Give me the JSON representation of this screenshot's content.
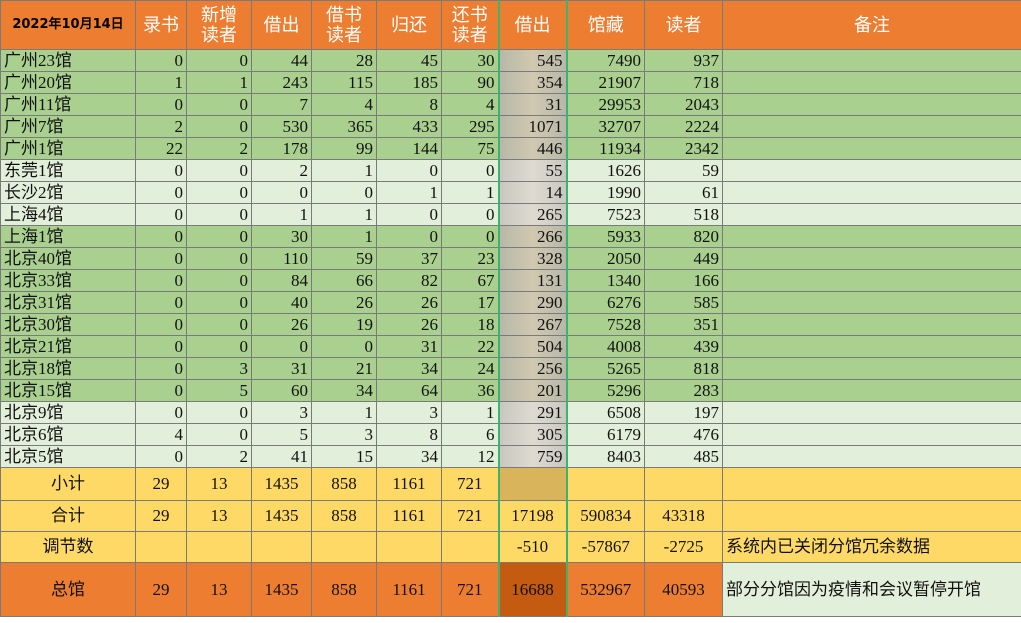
{
  "table": {
    "header": [
      "2022年10月14日",
      "录书",
      "新增读者",
      "借出",
      "借书读者",
      "归还",
      "还书读者",
      "借出",
      "馆藏",
      "读者",
      "备注"
    ],
    "rows": [
      {
        "name": "广州23馆",
        "values": [
          0,
          0,
          44,
          28,
          45,
          30,
          545,
          7490,
          937
        ]
      },
      {
        "name": "广州20馆",
        "values": [
          1,
          1,
          243,
          115,
          185,
          90,
          354,
          21907,
          718
        ]
      },
      {
        "name": "广州11馆",
        "values": [
          0,
          0,
          7,
          4,
          8,
          4,
          31,
          29953,
          2043
        ]
      },
      {
        "name": "广州7馆",
        "values": [
          2,
          0,
          530,
          365,
          433,
          295,
          1071,
          32707,
          2224
        ]
      },
      {
        "name": "广州1馆",
        "values": [
          22,
          2,
          178,
          99,
          144,
          75,
          446,
          11934,
          2342
        ]
      },
      {
        "name": "东莞1馆",
        "values": [
          0,
          0,
          2,
          1,
          0,
          0,
          55,
          1626,
          59
        ]
      },
      {
        "name": "长沙2馆",
        "values": [
          0,
          0,
          0,
          0,
          1,
          1,
          14,
          1990,
          61
        ]
      },
      {
        "name": "上海4馆",
        "values": [
          0,
          0,
          1,
          1,
          0,
          0,
          265,
          7523,
          518
        ]
      },
      {
        "name": "上海1馆",
        "values": [
          0,
          0,
          30,
          1,
          0,
          0,
          266,
          5933,
          820
        ]
      },
      {
        "name": "北京40馆",
        "values": [
          0,
          0,
          110,
          59,
          37,
          23,
          328,
          2050,
          449
        ]
      },
      {
        "name": "北京33馆",
        "values": [
          0,
          0,
          84,
          66,
          82,
          67,
          131,
          1340,
          166
        ]
      },
      {
        "name": "北京31馆",
        "values": [
          0,
          0,
          40,
          26,
          26,
          17,
          290,
          6276,
          585
        ]
      },
      {
        "name": "北京30馆",
        "values": [
          0,
          0,
          26,
          19,
          26,
          18,
          267,
          7528,
          351
        ]
      },
      {
        "name": "北京21馆",
        "values": [
          0,
          0,
          0,
          0,
          31,
          22,
          504,
          4008,
          439
        ]
      },
      {
        "name": "北京18馆",
        "values": [
          0,
          3,
          31,
          21,
          34,
          24,
          256,
          5265,
          818
        ]
      },
      {
        "name": "北京15馆",
        "values": [
          0,
          5,
          60,
          34,
          64,
          36,
          201,
          5296,
          283
        ]
      },
      {
        "name": "北京9馆",
        "values": [
          0,
          0,
          3,
          1,
          3,
          1,
          291,
          6508,
          197
        ]
      },
      {
        "name": "北京6馆",
        "values": [
          4,
          0,
          5,
          3,
          8,
          6,
          305,
          6179,
          476
        ]
      },
      {
        "name": "北京5馆",
        "values": [
          0,
          2,
          41,
          15,
          34,
          12,
          759,
          8403,
          485
        ]
      }
    ],
    "summary": [
      {
        "label": "小计",
        "values": [
          29,
          13,
          1435,
          858,
          1161,
          721,
          null,
          null,
          null
        ],
        "remark": null
      },
      {
        "label": "合计",
        "values": [
          29,
          13,
          1435,
          858,
          1161,
          721,
          17198,
          590834,
          43318
        ],
        "remark": null
      },
      {
        "label": "调节数",
        "values": [
          null,
          null,
          null,
          null,
          null,
          null,
          -510,
          -57867,
          -2725
        ],
        "remark": "系统内已关闭分馆冗余数据"
      },
      {
        "label": "总馆",
        "values": [
          29,
          13,
          1435,
          858,
          1161,
          721,
          16688,
          532967,
          40593
        ],
        "remark": "部分分馆因为疫情和会议暂停开馆"
      }
    ]
  }
}
